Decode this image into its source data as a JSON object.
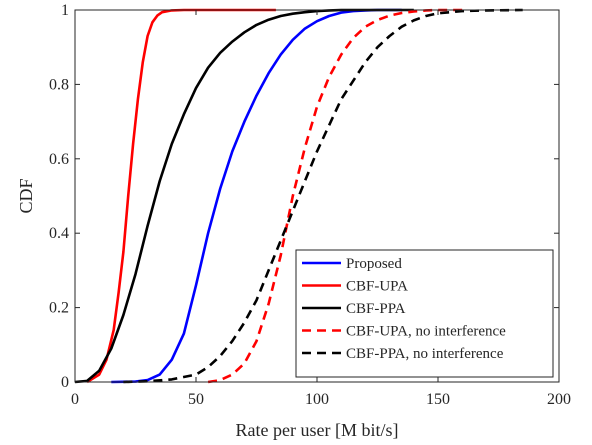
{
  "chart_data": {
    "type": "line",
    "title": "",
    "xlabel": "Rate per user [M bit/s]",
    "ylabel": "CDF",
    "xlim": [
      0,
      200
    ],
    "ylim": [
      0,
      1
    ],
    "x_ticks": [
      "0",
      "50",
      "100",
      "150",
      "200"
    ],
    "y_ticks": [
      "0",
      "0.2",
      "0.4",
      "0.6",
      "0.8",
      "1"
    ],
    "grid": false,
    "legend_position": "bottom-right",
    "series": [
      {
        "name": "Proposed",
        "color": "#0000ff",
        "dash": "solid",
        "x": [
          15,
          25,
          30,
          35,
          40,
          45,
          50,
          55,
          60,
          65,
          70,
          75,
          80,
          85,
          90,
          95,
          100,
          105,
          110,
          115,
          120,
          125,
          130,
          135
        ],
        "y": [
          0,
          0.001,
          0.005,
          0.02,
          0.06,
          0.13,
          0.26,
          0.4,
          0.52,
          0.62,
          0.7,
          0.77,
          0.83,
          0.88,
          0.92,
          0.95,
          0.97,
          0.984,
          0.993,
          0.997,
          0.999,
          1,
          1,
          1
        ]
      },
      {
        "name": "CBF-UPA",
        "color": "#ff0000",
        "dash": "solid",
        "x": [
          5,
          10,
          13,
          16,
          18,
          20,
          22,
          24,
          26,
          28,
          30,
          32,
          34,
          36,
          40,
          45,
          50,
          60,
          70,
          83
        ],
        "y": [
          0,
          0.02,
          0.06,
          0.14,
          0.24,
          0.35,
          0.5,
          0.64,
          0.76,
          0.86,
          0.93,
          0.967,
          0.985,
          0.994,
          0.999,
          1,
          1,
          1,
          1,
          1
        ]
      },
      {
        "name": "CBF-PPA",
        "color": "#000000",
        "dash": "solid",
        "x": [
          0,
          5,
          10,
          15,
          20,
          25,
          30,
          35,
          40,
          45,
          50,
          55,
          60,
          65,
          70,
          75,
          80,
          85,
          90,
          95,
          100,
          105,
          110,
          120,
          130,
          140
        ],
        "y": [
          0,
          0.003,
          0.03,
          0.09,
          0.18,
          0.29,
          0.42,
          0.54,
          0.64,
          0.72,
          0.79,
          0.845,
          0.885,
          0.915,
          0.94,
          0.96,
          0.974,
          0.984,
          0.99,
          0.994,
          0.997,
          0.999,
          1,
          1,
          1,
          1
        ]
      },
      {
        "name": "CBF-UPA, no interference",
        "color": "#ff0000",
        "dash": "dashed",
        "x": [
          55,
          60,
          65,
          70,
          75,
          80,
          85,
          90,
          95,
          100,
          105,
          110,
          115,
          120,
          125,
          130,
          135,
          140,
          145,
          150,
          160
        ],
        "y": [
          0,
          0.005,
          0.02,
          0.05,
          0.11,
          0.21,
          0.34,
          0.5,
          0.63,
          0.74,
          0.82,
          0.88,
          0.925,
          0.955,
          0.973,
          0.985,
          0.992,
          0.996,
          0.999,
          1,
          1
        ]
      },
      {
        "name": "CBF-PPA, no interference",
        "color": "#000000",
        "dash": "dashed",
        "x": [
          20,
          30,
          40,
          50,
          55,
          60,
          65,
          70,
          75,
          80,
          85,
          90,
          95,
          100,
          105,
          110,
          115,
          120,
          125,
          130,
          135,
          140,
          145,
          150,
          160,
          170,
          185
        ],
        "y": [
          0,
          0.002,
          0.007,
          0.02,
          0.04,
          0.07,
          0.11,
          0.16,
          0.22,
          0.3,
          0.38,
          0.46,
          0.54,
          0.62,
          0.69,
          0.76,
          0.81,
          0.86,
          0.9,
          0.93,
          0.955,
          0.972,
          0.984,
          0.991,
          0.997,
          0.999,
          1
        ]
      }
    ]
  }
}
